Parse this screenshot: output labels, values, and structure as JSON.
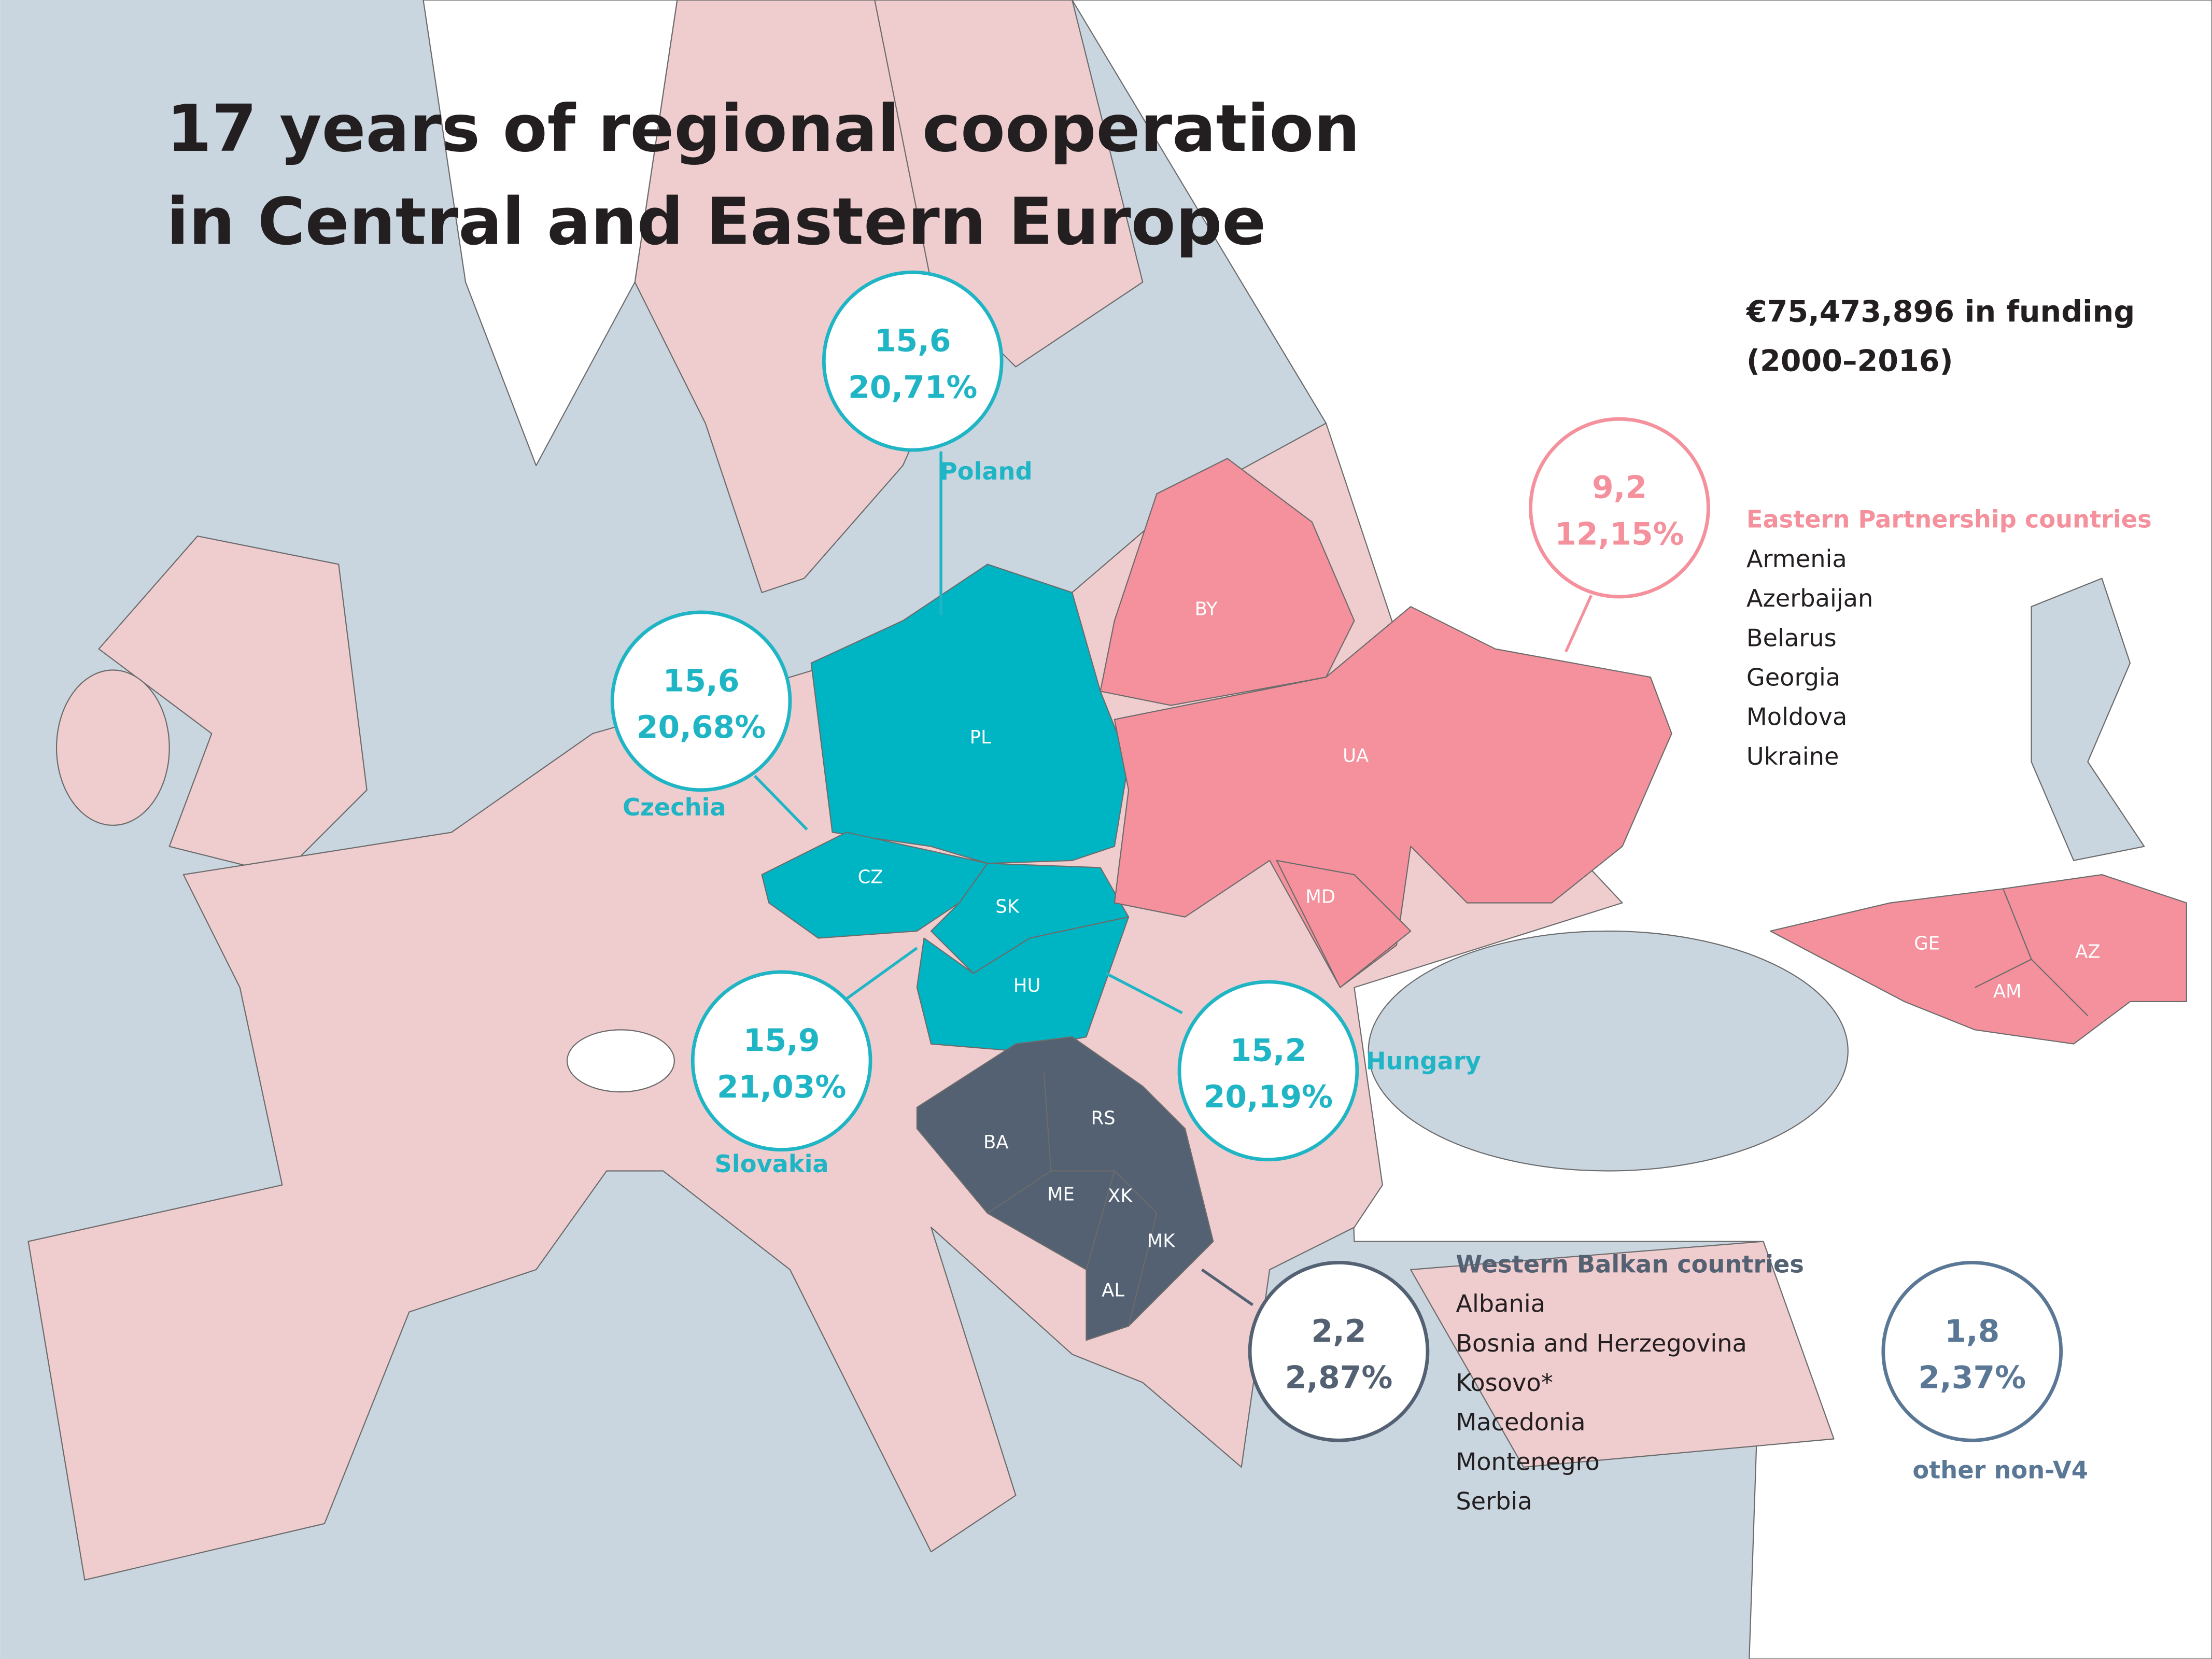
{
  "title": [
    "17 years of regional cooperation",
    "in Central and Eastern Europe"
  ],
  "funding": [
    "€75,473,896 in funding",
    "(2000–2016)"
  ],
  "bubbles": [
    {
      "value": "15,6",
      "share": "20,71%",
      "label": "Poland"
    },
    {
      "value": "15,6",
      "share": "20,68%",
      "label": "Czechia"
    },
    {
      "value": "15,9",
      "share": "21,03%",
      "label": "Slovakia"
    },
    {
      "value": "15,2",
      "share": "20,19%",
      "label": "Hungary"
    },
    {
      "value": "9,2",
      "share": "12,15%"
    },
    {
      "value": "2,2",
      "share": "2,87%"
    },
    {
      "value": "1,8",
      "share": "2,37%",
      "label": "other non-V4"
    }
  ],
  "country_codes": [
    "PL",
    "CZ",
    "SK",
    "HU",
    "BY",
    "UA",
    "MD",
    "GE",
    "AZ",
    "AM",
    "BA",
    "RS",
    "ME",
    "XK",
    "MK",
    "AL"
  ],
  "groups": [
    {
      "heading": "Eastern Partnership countries",
      "items": [
        "Armenia",
        "Azerbaijan",
        "Belarus",
        "Georgia",
        "Moldova",
        "Ukraine"
      ]
    },
    {
      "heading": "Western Balkan countries",
      "items": [
        "Albania",
        "Bosnia and Herzegovina",
        "Kosovo*",
        "Macedonia",
        "Montenegro",
        "Serbia"
      ]
    }
  ]
}
